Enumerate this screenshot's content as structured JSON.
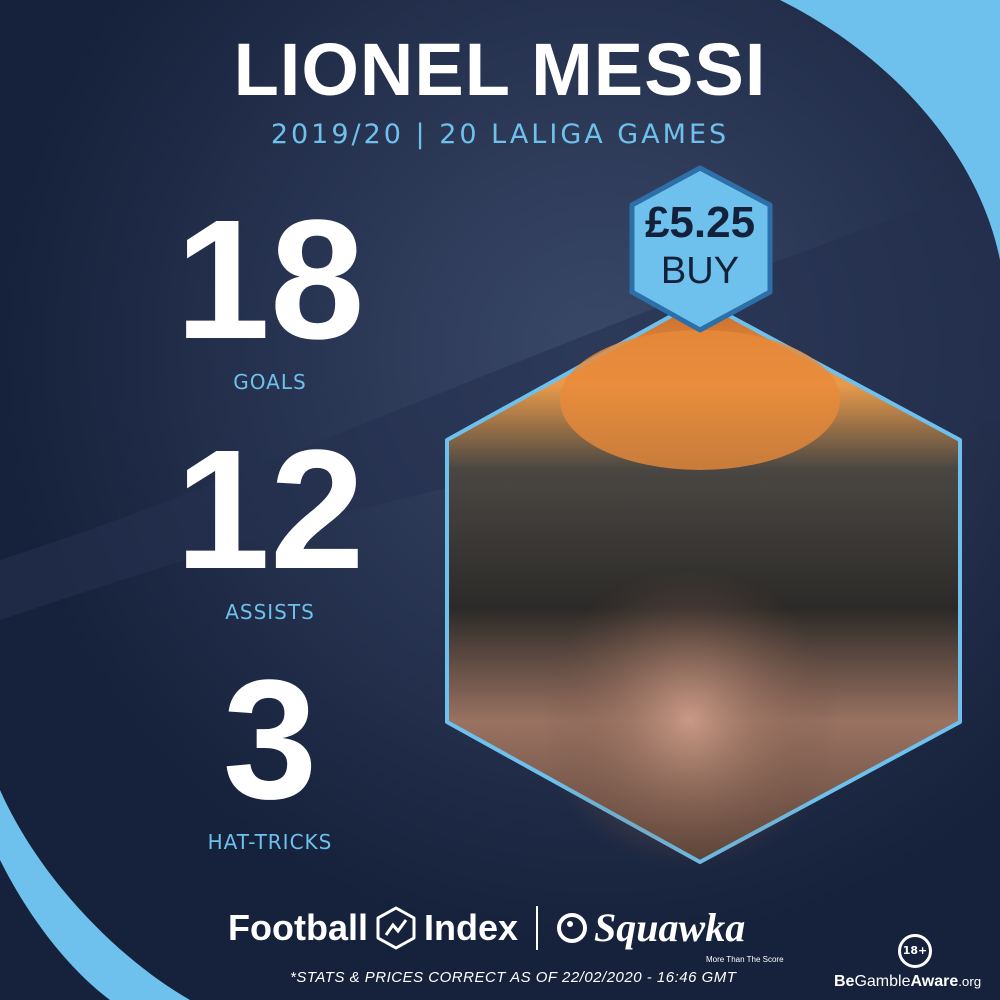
{
  "header": {
    "title": "LIONEL MESSI",
    "subtitle": "2019/20 | 20 LALIGA GAMES"
  },
  "stats": [
    {
      "value": "18",
      "label": "GOALS"
    },
    {
      "value": "12",
      "label": "ASSISTS"
    },
    {
      "value": "3",
      "label": "HAT-TRICKS"
    }
  ],
  "badge": {
    "price": "£5.25",
    "action": "BUY"
  },
  "footer": {
    "brand1_left": "Football",
    "brand1_right": "Index",
    "brand2": "Squawka",
    "brand2_tagline": "More Than The Score",
    "disclaimer": "*STATS & PRICES CORRECT AS OF 22/02/2020 - 16:46 GMT",
    "age_badge": "18+",
    "gamble_be": "Be",
    "gamble_gamble": "Gamble",
    "gamble_aware": "Aware",
    "gamble_org": ".org"
  },
  "colors": {
    "background": "#16213b",
    "accent": "#6ec1ec",
    "badge_text": "#14213a"
  }
}
